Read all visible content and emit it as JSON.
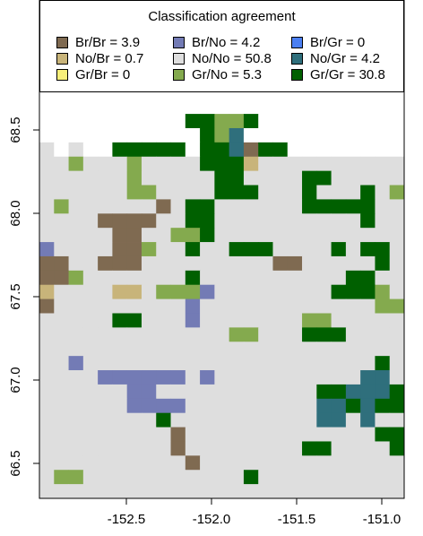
{
  "legend": {
    "title": "Classification agreement",
    "items": [
      {
        "label": "Br/Br = 3.9",
        "color": "#7f6a51"
      },
      {
        "label": "No/Br = 0.7",
        "color": "#c8b47a"
      },
      {
        "label": "Gr/Br = 0",
        "color": "#f7ef7a"
      },
      {
        "label": "Br/No = 4.2",
        "color": "#737bb5"
      },
      {
        "label": "No/No = 50.8",
        "color": "#dedede"
      },
      {
        "label": "Gr/No = 5.3",
        "color": "#84aa4e"
      },
      {
        "label": "Br/Gr = 0",
        "color": "#4b7ff2"
      },
      {
        "label": "No/Gr = 4.2",
        "color": "#2f6f7c"
      },
      {
        "label": "Gr/Gr = 30.8",
        "color": "#006000"
      }
    ]
  },
  "axes": {
    "x_ticks": [
      "-152.5",
      "-152.0",
      "-151.5",
      "-151.0"
    ],
    "y_ticks": [
      "68.5",
      "68.0",
      "67.5",
      "67.0",
      "66.5"
    ]
  },
  "grid_cols": 25,
  "grid_rows": 35,
  "grid": [
    "GGGGGGGGGGGGGGGGGGGGGGGGG",
    "GGGGGGGGGGGGGGGGGGGGGGGGG",
    "GGGGGGGGGGGGGGGGGGGGGGGGG",
    "GGGGGGGGGGGGGGGGGGGGGGGGG",
    "WGWWGGWGGGGGGGGGGGGGGWGGG",
    "WWWWWWWWWWWGGGWWGGGWWWWWW",
    "WWWWWWWWWWWWWWWWWWWWWWWWW",
    "WWWWWWWWWWWWWWWWWWWWWWWWW",
    "WWWWWWWWWWGGFFGWWWWWWWWWW",
    "WWWWWWWWWWWGFTWWWWWWWWWWW",
    "NWNWWGGGGGWGGTBGGWWWWWWWW",
    "NNFNNNFNNNNGGGYNNNNNNNNNN",
    "NNNNNNFNNNNNGGNNNNGGNNNNN",
    "NNNNNNFFNNNNGGGNNNGNNNGNF",
    "NFNNNNNNBNGGNNNNNNGGGGGNN",
    "NNNNBBBBNNGGNNNNNNNNNNGNN",
    "NNNNNBBNNFFGNNNNNNNNNNNNN",
    "LNNNNBBFNNGNNGGGNNNNGNGGN",
    "BBNNBBBNNNNNNNNNBBNNNNNGN",
    "BBFNNNNNNNGNNNNNNNNNNGGNN",
    "YNNNNYYNFFFLNNNNNNNNGGGFN",
    "BNNNNNNNNNLNNNNNNNNNNNNFF",
    "NNNNNGGNNNLNNNNNNNFFNNNNN",
    "NNNNNNNNNNNNNFFNNNGGGNNNN",
    "NNNNNNNNNNNNNNNNNNNNNNNNN",
    "NNLNNNNNNNNNNNNNNNNNNNNGN",
    "NNNNLLLLLLNLNNNNNNNNNNTTN",
    "NNNNNNLLNNNNNNNNNNNGGTTTG",
    "NNNNNNLLLLNNNNNNNNNTTGTGG",
    "NNNNNNNNGNNNNNNNNNNTTNTNN",
    "NNNNNNNNNBNNNNNNNNNNNNNGG",
    "NNNNNNNNNBNNNNNNNNGGNNNNG",
    "NNNNNNNNNNBNNNNNNNNNNNNNN",
    "NFFNNNNNNNNNNNGNNNNNNNNNN",
    "NNNNNNNNNNNNNNNNNNNNNNNNN"
  ],
  "overlays": [
    {
      "code": "B",
      "cells": [
        [
          5,
          15
        ],
        [
          6,
          15
        ],
        [
          7,
          18
        ],
        [
          8,
          18
        ],
        [
          4,
          23
        ],
        [
          5,
          24
        ],
        [
          6,
          24
        ],
        [
          11,
          26
        ],
        [
          12,
          26
        ],
        [
          8,
          31
        ],
        [
          9,
          31
        ],
        [
          10,
          32
        ],
        [
          16,
          24
        ],
        [
          17,
          24
        ],
        [
          1,
          18
        ],
        [
          2,
          18
        ],
        [
          3,
          19
        ],
        [
          4,
          19
        ],
        [
          5,
          19
        ],
        [
          0,
          18
        ],
        [
          1,
          19
        ],
        [
          2,
          19
        ],
        [
          3,
          18
        ],
        [
          4,
          18
        ],
        [
          6,
          23
        ],
        [
          7,
          23
        ],
        [
          8,
          23
        ],
        [
          9,
          24
        ],
        [
          10,
          24
        ],
        [
          11,
          24
        ],
        [
          12,
          25
        ],
        [
          13,
          25
        ],
        [
          14,
          25
        ],
        [
          15,
          25
        ],
        [
          16,
          25
        ],
        [
          17,
          25
        ],
        [
          23,
          30
        ],
        [
          24,
          30
        ]
      ]
    },
    {
      "code": "L",
      "cells": [
        [
          8,
          23
        ],
        [
          9,
          23
        ],
        [
          10,
          23
        ],
        [
          11,
          23
        ],
        [
          12,
          24
        ],
        [
          13,
          24
        ],
        [
          14,
          24
        ],
        [
          15,
          18
        ],
        [
          16,
          18
        ],
        [
          4,
          18
        ],
        [
          5,
          18
        ],
        [
          6,
          18
        ],
        [
          7,
          19
        ],
        [
          8,
          19
        ],
        [
          9,
          20
        ],
        [
          0,
          19
        ],
        [
          1,
          18
        ],
        [
          2,
          18
        ],
        [
          6,
          16
        ],
        [
          7,
          16
        ],
        [
          8,
          16
        ],
        [
          9,
          16
        ]
      ]
    },
    {
      "code": "G",
      "cells": [
        [
          5,
          10
        ],
        [
          6,
          10
        ],
        [
          7,
          10
        ],
        [
          8,
          10
        ],
        [
          9,
          10
        ],
        [
          10,
          10
        ],
        [
          11,
          10
        ],
        [
          6,
          11
        ],
        [
          7,
          11
        ],
        [
          8,
          11
        ],
        [
          9,
          11
        ],
        [
          10,
          11
        ],
        [
          11,
          11
        ],
        [
          12,
          11
        ],
        [
          13,
          11
        ],
        [
          14,
          11
        ],
        [
          15,
          11
        ],
        [
          16,
          11
        ],
        [
          17,
          11
        ],
        [
          18,
          11
        ],
        [
          12,
          10
        ],
        [
          13,
          10
        ],
        [
          14,
          10
        ],
        [
          15,
          10
        ],
        [
          16,
          10
        ],
        [
          17,
          10
        ],
        [
          18,
          10
        ],
        [
          19,
          10
        ],
        [
          20,
          10
        ],
        [
          21,
          10
        ],
        [
          22,
          10
        ],
        [
          23,
          10
        ],
        [
          24,
          10
        ],
        [
          14,
          12
        ],
        [
          15,
          12
        ],
        [
          16,
          12
        ],
        [
          17,
          12
        ],
        [
          18,
          12
        ],
        [
          19,
          12
        ],
        [
          20,
          12
        ],
        [
          21,
          12
        ],
        [
          22,
          12
        ],
        [
          23,
          12
        ],
        [
          24,
          12
        ],
        [
          21,
          13
        ],
        [
          22,
          13
        ],
        [
          23,
          13
        ],
        [
          24,
          13
        ],
        [
          0,
          34
        ],
        [
          1,
          34
        ],
        [
          2,
          34
        ],
        [
          3,
          34
        ],
        [
          4,
          34
        ],
        [
          5,
          34
        ],
        [
          6,
          34
        ],
        [
          7,
          34
        ],
        [
          8,
          34
        ],
        [
          9,
          34
        ],
        [
          10,
          34
        ],
        [
          11,
          34
        ],
        [
          12,
          34
        ],
        [
          13,
          34
        ],
        [
          14,
          34
        ],
        [
          15,
          34
        ],
        [
          16,
          34
        ],
        [
          17,
          34
        ],
        [
          18,
          34
        ],
        [
          19,
          34
        ],
        [
          20,
          34
        ],
        [
          21,
          34
        ],
        [
          22,
          34
        ],
        [
          23,
          34
        ],
        [
          24,
          34
        ],
        [
          7,
          33
        ],
        [
          8,
          33
        ],
        [
          9,
          33
        ],
        [
          10,
          33
        ],
        [
          11,
          33
        ],
        [
          12,
          33
        ],
        [
          15,
          33
        ],
        [
          16,
          33
        ],
        [
          17,
          33
        ],
        [
          18,
          33
        ],
        [
          19,
          33
        ],
        [
          20,
          33
        ],
        [
          21,
          33
        ],
        [
          22,
          33
        ],
        [
          23,
          33
        ],
        [
          24,
          33
        ],
        [
          17,
          32
        ],
        [
          18,
          32
        ],
        [
          19,
          32
        ],
        [
          20,
          32
        ],
        [
          21,
          32
        ],
        [
          22,
          32
        ],
        [
          23,
          32
        ],
        [
          24,
          32
        ],
        [
          21,
          31
        ],
        [
          22,
          31
        ],
        [
          23,
          31
        ],
        [
          24,
          31
        ],
        [
          20,
          30
        ],
        [
          21,
          30
        ],
        [
          22,
          30
        ],
        [
          23,
          30
        ],
        [
          24,
          30
        ],
        [
          20,
          29
        ],
        [
          21,
          29
        ],
        [
          22,
          29
        ],
        [
          23,
          29
        ],
        [
          24,
          29
        ],
        [
          23,
          28
        ],
        [
          24,
          28
        ],
        [
          24,
          27
        ],
        [
          23,
          26
        ],
        [
          24,
          26
        ],
        [
          22,
          25
        ],
        [
          23,
          25
        ],
        [
          24,
          25
        ],
        [
          20,
          27
        ],
        [
          21,
          27
        ],
        [
          22,
          27
        ],
        [
          22,
          28
        ],
        [
          21,
          28
        ],
        [
          20,
          28
        ],
        [
          19,
          26
        ],
        [
          20,
          26
        ],
        [
          19,
          27
        ],
        [
          19,
          28
        ],
        [
          20,
          25
        ],
        [
          21,
          25
        ],
        [
          22,
          24
        ],
        [
          23,
          24
        ],
        [
          22,
          23
        ],
        [
          21,
          23
        ],
        [
          21,
          22
        ],
        [
          20,
          22
        ],
        [
          19,
          22
        ],
        [
          18,
          22
        ],
        [
          17,
          21
        ],
        [
          18,
          21
        ],
        [
          19,
          21
        ],
        [
          20,
          21
        ],
        [
          21,
          21
        ],
        [
          22,
          21
        ],
        [
          21,
          20
        ],
        [
          22,
          20
        ],
        [
          23,
          20
        ],
        [
          20,
          19
        ],
        [
          21,
          19
        ],
        [
          22,
          19
        ],
        [
          23,
          19
        ],
        [
          22,
          18
        ],
        [
          23,
          18
        ],
        [
          24,
          18
        ],
        [
          21,
          17
        ],
        [
          22,
          17
        ],
        [
          23,
          17
        ],
        [
          24,
          17
        ],
        [
          21,
          16
        ],
        [
          22,
          16
        ],
        [
          23,
          16
        ],
        [
          24,
          16
        ],
        [
          22,
          15
        ],
        [
          23,
          15
        ],
        [
          24,
          15
        ],
        [
          22,
          14
        ],
        [
          23,
          14
        ],
        [
          24,
          14
        ],
        [
          19,
          14
        ],
        [
          20,
          14
        ],
        [
          21,
          14
        ],
        [
          18,
          15
        ],
        [
          19,
          15
        ],
        [
          20,
          15
        ],
        [
          18,
          14
        ],
        [
          16,
          15
        ],
        [
          17,
          15
        ],
        [
          15,
          14
        ],
        [
          16,
          14
        ],
        [
          17,
          14
        ],
        [
          13,
          16
        ],
        [
          14,
          16
        ],
        [
          15,
          16
        ],
        [
          12,
          17
        ],
        [
          13,
          17
        ],
        [
          14,
          17
        ],
        [
          13,
          15
        ],
        [
          14,
          15
        ],
        [
          12,
          14
        ],
        [
          13,
          14
        ],
        [
          12,
          13
        ],
        [
          13,
          13
        ],
        [
          14,
          13
        ],
        [
          10,
          13
        ],
        [
          11,
          13
        ],
        [
          9,
          15
        ],
        [
          10,
          15
        ],
        [
          11,
          15
        ],
        [
          9,
          16
        ],
        [
          10,
          16
        ],
        [
          11,
          16
        ],
        [
          9,
          17
        ],
        [
          10,
          17
        ],
        [
          11,
          17
        ],
        [
          8,
          18
        ],
        [
          9,
          18
        ],
        [
          10,
          18
        ],
        [
          11,
          18
        ],
        [
          10,
          19
        ],
        [
          11,
          19
        ],
        [
          12,
          19
        ],
        [
          16,
          19
        ],
        [
          17,
          19
        ],
        [
          18,
          19
        ],
        [
          19,
          19
        ],
        [
          20,
          18
        ],
        [
          21,
          18
        ],
        [
          22,
          18
        ],
        [
          16,
          20
        ],
        [
          17,
          20
        ],
        [
          18,
          20
        ],
        [
          19,
          20
        ],
        [
          15,
          21
        ],
        [
          16,
          21
        ],
        [
          14,
          22
        ],
        [
          15,
          22
        ],
        [
          16,
          22
        ],
        [
          12,
          23
        ],
        [
          13,
          23
        ],
        [
          14,
          23
        ],
        [
          15,
          23
        ],
        [
          10,
          24
        ],
        [
          11,
          24
        ],
        [
          12,
          24
        ],
        [
          13,
          24
        ],
        [
          14,
          24
        ],
        [
          9,
          25
        ],
        [
          10,
          25
        ],
        [
          11,
          25
        ],
        [
          12,
          25
        ],
        [
          13,
          25
        ],
        [
          14,
          25
        ],
        [
          15,
          25
        ],
        [
          16,
          25
        ],
        [
          17,
          25
        ],
        [
          18,
          25
        ],
        [
          3,
          20
        ],
        [
          4,
          20
        ],
        [
          5,
          20
        ],
        [
          6,
          20
        ],
        [
          3,
          19
        ],
        [
          4,
          19
        ],
        [
          5,
          19
        ],
        [
          6,
          19
        ]
      ]
    }
  ],
  "coastline": "present"
}
